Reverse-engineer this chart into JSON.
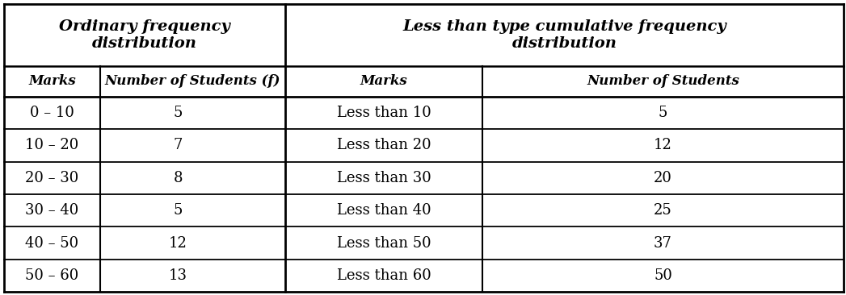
{
  "col1_header": "Marks",
  "col2_header": "Number of Students (f)",
  "col3_header": "Marks",
  "col4_header": "Number of Students",
  "group1_header": "Ordinary frequency\ndistribution",
  "group2_header": "Less than type cumulative frequency\ndistribution",
  "ordinary_marks": [
    "0 – 10",
    "10 – 20",
    "20 – 30",
    "30 – 40",
    "40 – 50",
    "50 – 60"
  ],
  "ordinary_freq": [
    "5",
    "7",
    "8",
    "5",
    "12",
    "13"
  ],
  "cumulative_marks": [
    "Less than 10",
    "Less than 20",
    "Less than 30",
    "Less than 40",
    "Less than 50",
    "Less than 60"
  ],
  "cumulative_freq": [
    "5",
    "12",
    "20",
    "25",
    "37",
    "50"
  ],
  "bg_color": "#ffffff",
  "line_color": "#000000",
  "text_color": "#000000",
  "header_fontsize": 14,
  "subheader_fontsize": 12,
  "data_fontsize": 13,
  "figsize": [
    10.47,
    3.66
  ],
  "dpi": 100
}
